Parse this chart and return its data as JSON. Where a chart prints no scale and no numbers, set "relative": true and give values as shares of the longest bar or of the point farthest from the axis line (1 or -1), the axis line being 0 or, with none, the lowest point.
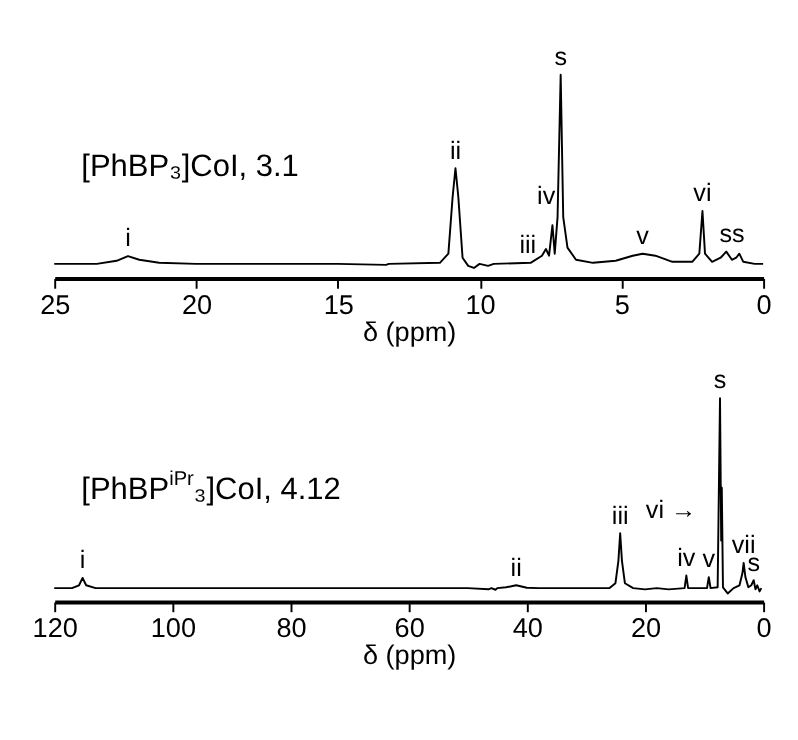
{
  "chart_data": [
    {
      "type": "line",
      "title": "[PhBP₃]CoI, 3.1",
      "xlabel": "δ (ppm)",
      "relative": true,
      "color": "#000000",
      "xlim": [
        25,
        0
      ],
      "xticks": [
        25,
        20,
        15,
        10,
        5,
        0
      ],
      "x": [
        25,
        23.5,
        22.8,
        22.4,
        22.0,
        21.3,
        20,
        15,
        13.3,
        13.2,
        11.4,
        11.1,
        10.95,
        10.85,
        10.75,
        10.6,
        10.4,
        10.2,
        10.0,
        9.7,
        9.5,
        8.2,
        7.8,
        7.66,
        7.55,
        7.43,
        7.35,
        7.25,
        7.14,
        7.05,
        6.9,
        6.6,
        6.0,
        5.2,
        4.6,
        4.25,
        3.8,
        3.2,
        2.5,
        2.25,
        2.14,
        2.05,
        1.8,
        1.5,
        1.3,
        1.1,
        0.95,
        0.84,
        0.7,
        0.3,
        0
      ],
      "values": [
        0.07,
        0.07,
        0.085,
        0.108,
        0.09,
        0.075,
        0.07,
        0.07,
        0.065,
        0.07,
        0.075,
        0.12,
        0.4,
        0.54,
        0.4,
        0.1,
        0.06,
        0.05,
        0.07,
        0.06,
        0.07,
        0.075,
        0.11,
        0.143,
        0.11,
        0.26,
        0.12,
        0.3,
        1.0,
        0.3,
        0.15,
        0.09,
        0.075,
        0.085,
        0.11,
        0.12,
        0.11,
        0.08,
        0.08,
        0.12,
        0.33,
        0.12,
        0.08,
        0.1,
        0.13,
        0.09,
        0.1,
        0.12,
        0.08,
        0.07,
        0.07
      ],
      "annotations": [
        {
          "text": "i",
          "x": 22.4,
          "y": 0.108
        },
        {
          "text": "ii",
          "x": 10.85,
          "y": 0.54
        },
        "iii",
        "iv",
        {
          "text": "s",
          "x": 7.14,
          "y": 1.0
        },
        {
          "text": "v",
          "x": 4.25,
          "y": 0.12
        },
        {
          "text": "vi",
          "x": 2.14,
          "y": 0.33
        },
        {
          "text": "ss",
          "x": 1.1,
          "y": 0.13
        }
      ]
    },
    {
      "type": "line",
      "title": "[PhBP$^{iPr}$₃]CoI, 4.12",
      "xlabel": "δ (ppm)",
      "relative": true,
      "color": "#000000",
      "xlim": [
        120,
        0
      ],
      "xticks": [
        120,
        100,
        80,
        60,
        40,
        20,
        0
      ],
      "x": [
        120,
        117,
        115.8,
        115.2,
        114.6,
        113,
        50,
        46.5,
        46,
        45.3,
        45,
        43.5,
        41.8,
        40,
        38,
        26,
        25,
        24.5,
        24.2,
        23.9,
        23.4,
        22,
        20,
        18,
        16,
        13.3,
        13.0,
        12.7,
        9.5,
        9.2,
        8.9,
        7.7,
        7.3,
        7.1,
        7.0,
        6.8,
        6.0,
        5.0,
        4.0,
        3.5,
        3.3,
        3.0,
        2.5,
        2.0,
        1.6,
        1.3,
        1.0,
        0.6,
        0.3
      ],
      "values": [
        0.066,
        0.066,
        0.08,
        0.116,
        0.08,
        0.066,
        0.066,
        0.06,
        0.066,
        0.058,
        0.066,
        0.07,
        0.08,
        0.068,
        0.066,
        0.066,
        0.09,
        0.2,
        0.336,
        0.2,
        0.09,
        0.066,
        0.06,
        0.066,
        0.06,
        0.066,
        0.128,
        0.066,
        0.066,
        0.12,
        0.066,
        0.07,
        1.0,
        0.3,
        0.56,
        0.07,
        0.04,
        0.066,
        0.08,
        0.14,
        0.19,
        0.12,
        0.07,
        0.08,
        0.105,
        0.06,
        0.08,
        0.05,
        0.066
      ],
      "annotations": [
        {
          "text": "i",
          "x": 115.2,
          "y": 0.116
        },
        {
          "text": "ii",
          "x": 41.8,
          "y": 0.08
        },
        {
          "text": "iii",
          "x": 24.2,
          "y": 0.336
        },
        {
          "text": "iv",
          "x": 13.0,
          "y": 0.128
        },
        {
          "text": "v",
          "x": 9.2,
          "y": 0.12
        },
        {
          "text": "s",
          "x": 7.3,
          "y": 1.0
        },
        "vi →",
        {
          "text": "vii",
          "x": 3.3,
          "y": 0.19
        },
        {
          "text": "s",
          "x": 1.6,
          "y": 0.105
        }
      ]
    }
  ]
}
